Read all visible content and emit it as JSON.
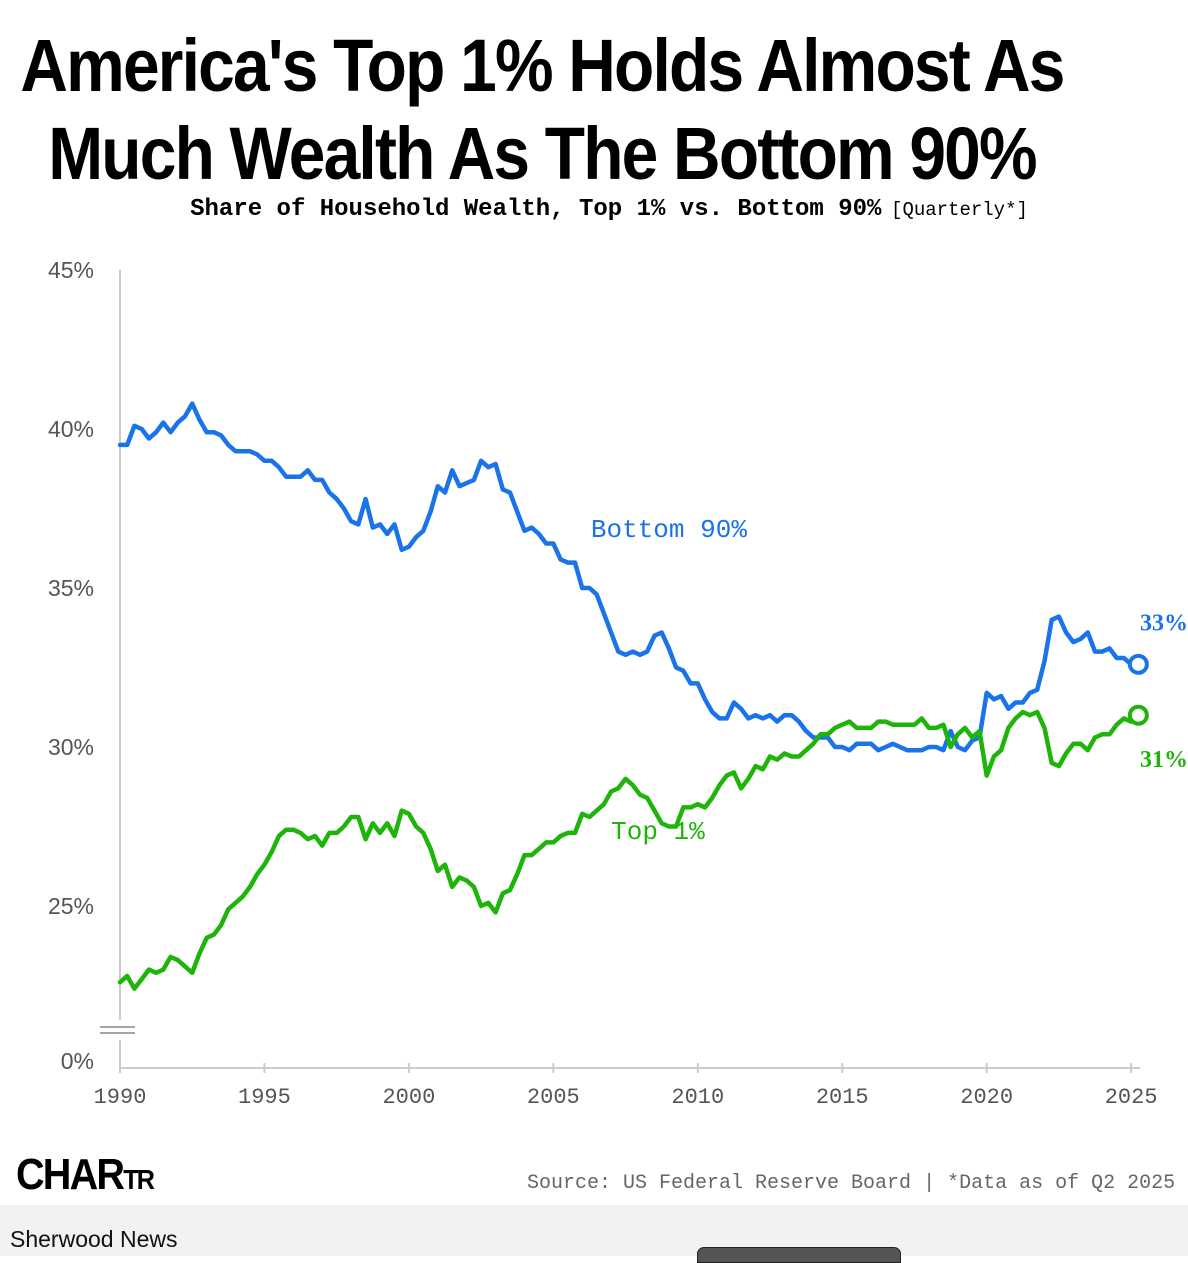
{
  "title": "America's Top 1% Holds Almost As Much Wealth As The Bottom 90%",
  "subtitle": "Share of Household Wealth, Top 1% vs. Bottom 90%",
  "subtitle_note": "[Quarterly*]",
  "brand": {
    "logo_main": "CHAR",
    "logo_small": "TR",
    "publisher": "Sherwood News"
  },
  "source": "Source: US Federal Reserve Board | *Data as of Q2 2025",
  "colors": {
    "bottom90": "#1a73e8",
    "top1": "#1fb40a",
    "axis": "#cccccc",
    "tick_text": "#555555"
  },
  "chart_data": {
    "type": "line",
    "title": "Share of Household Wealth, Top 1% vs. Bottom 90%",
    "xlabel": "",
    "ylabel": "",
    "xlim": [
      1990,
      2025.3
    ],
    "ylim": [
      0,
      45
    ],
    "axis_break": true,
    "y_ticks": [
      0,
      25,
      30,
      35,
      40,
      45
    ],
    "y_tick_labels": [
      "0%",
      "25%",
      "30%",
      "35%",
      "40%",
      "45%"
    ],
    "x_ticks": [
      1990,
      1995,
      2000,
      2005,
      2010,
      2015,
      2020,
      2025
    ],
    "x_tick_labels": [
      "1990",
      "1995",
      "2000",
      "2005",
      "2010",
      "2015",
      "2020",
      "2025"
    ],
    "series": [
      {
        "name": "Bottom 90%",
        "end_label": "33%",
        "x": [
          1990.0,
          1990.25,
          1990.5,
          1990.75,
          1991.0,
          1991.25,
          1991.5,
          1991.75,
          1992.0,
          1992.25,
          1992.5,
          1992.75,
          1993.0,
          1993.25,
          1993.5,
          1993.75,
          1994.0,
          1994.25,
          1994.5,
          1994.75,
          1995.0,
          1995.25,
          1995.5,
          1995.75,
          1996.0,
          1996.25,
          1996.5,
          1996.75,
          1997.0,
          1997.25,
          1997.5,
          1997.75,
          1998.0,
          1998.25,
          1998.5,
          1998.75,
          1999.0,
          1999.25,
          1999.5,
          1999.75,
          2000.0,
          2000.25,
          2000.5,
          2000.75,
          2001.0,
          2001.25,
          2001.5,
          2001.75,
          2002.0,
          2002.25,
          2002.5,
          2002.75,
          2003.0,
          2003.25,
          2003.5,
          2003.75,
          2004.0,
          2004.25,
          2004.5,
          2004.75,
          2005.0,
          2005.25,
          2005.5,
          2005.75,
          2006.0,
          2006.25,
          2006.5,
          2006.75,
          2007.0,
          2007.25,
          2007.5,
          2007.75,
          2008.0,
          2008.25,
          2008.5,
          2008.75,
          2009.0,
          2009.25,
          2009.5,
          2009.75,
          2010.0,
          2010.25,
          2010.5,
          2010.75,
          2011.0,
          2011.25,
          2011.5,
          2011.75,
          2012.0,
          2012.25,
          2012.5,
          2012.75,
          2013.0,
          2013.25,
          2013.5,
          2013.75,
          2014.0,
          2014.25,
          2014.5,
          2014.75,
          2015.0,
          2015.25,
          2015.5,
          2015.75,
          2016.0,
          2016.25,
          2016.5,
          2016.75,
          2017.0,
          2017.25,
          2017.5,
          2017.75,
          2018.0,
          2018.25,
          2018.5,
          2018.75,
          2019.0,
          2019.25,
          2019.5,
          2019.75,
          2020.0,
          2020.25,
          2020.5,
          2020.75,
          2021.0,
          2021.25,
          2021.5,
          2021.75,
          2022.0,
          2022.25,
          2022.5,
          2022.75,
          2023.0,
          2023.25,
          2023.5,
          2023.75,
          2024.0,
          2024.25,
          2024.5,
          2024.75,
          2025.0,
          2025.25
        ],
        "values": [
          39.5,
          39.5,
          40.1,
          40.0,
          39.7,
          39.9,
          40.2,
          39.9,
          40.2,
          40.4,
          40.8,
          40.3,
          39.9,
          39.9,
          39.8,
          39.5,
          39.3,
          39.3,
          39.3,
          39.2,
          39.0,
          39.0,
          38.8,
          38.5,
          38.5,
          38.5,
          38.7,
          38.4,
          38.4,
          38.0,
          37.8,
          37.5,
          37.1,
          37.0,
          37.8,
          36.9,
          37.0,
          36.7,
          37.0,
          36.2,
          36.3,
          36.6,
          36.8,
          37.4,
          38.2,
          38.0,
          38.7,
          38.2,
          38.3,
          38.4,
          39.0,
          38.8,
          38.9,
          38.1,
          38.0,
          37.4,
          36.8,
          36.9,
          36.7,
          36.4,
          36.4,
          35.9,
          35.8,
          35.8,
          35.0,
          35.0,
          34.8,
          34.2,
          33.6,
          33.0,
          32.9,
          33.0,
          32.9,
          33.0,
          33.5,
          33.6,
          33.1,
          32.5,
          32.4,
          32.0,
          32.0,
          31.5,
          31.1,
          30.9,
          30.9,
          31.4,
          31.2,
          30.9,
          31.0,
          30.9,
          31.0,
          30.8,
          31.0,
          31.0,
          30.8,
          30.5,
          30.3,
          30.3,
          30.3,
          30.0,
          30.0,
          29.9,
          30.1,
          30.1,
          30.1,
          29.9,
          30.0,
          30.1,
          30.0,
          29.9,
          29.9,
          29.9,
          30.0,
          30.0,
          29.9,
          30.5,
          30.0,
          29.9,
          30.2,
          30.3,
          31.7,
          31.5,
          31.6,
          31.2,
          31.4,
          31.4,
          31.7,
          31.8,
          32.7,
          34.0,
          34.1,
          33.6,
          33.3,
          33.4,
          33.6,
          33.0,
          33.0,
          33.1,
          32.8,
          32.8,
          32.6,
          32.6
        ]
      },
      {
        "name": "Top 1%",
        "end_label": "31%",
        "x": [
          1990.0,
          1990.25,
          1990.5,
          1990.75,
          1991.0,
          1991.25,
          1991.5,
          1991.75,
          1992.0,
          1992.25,
          1992.5,
          1992.75,
          1993.0,
          1993.25,
          1993.5,
          1993.75,
          1994.0,
          1994.25,
          1994.5,
          1994.75,
          1995.0,
          1995.25,
          1995.5,
          1995.75,
          1996.0,
          1996.25,
          1996.5,
          1996.75,
          1997.0,
          1997.25,
          1997.5,
          1997.75,
          1998.0,
          1998.25,
          1998.5,
          1998.75,
          1999.0,
          1999.25,
          1999.5,
          1999.75,
          2000.0,
          2000.25,
          2000.5,
          2000.75,
          2001.0,
          2001.25,
          2001.5,
          2001.75,
          2002.0,
          2002.25,
          2002.5,
          2002.75,
          2003.0,
          2003.25,
          2003.5,
          2003.75,
          2004.0,
          2004.25,
          2004.5,
          2004.75,
          2005.0,
          2005.25,
          2005.5,
          2005.75,
          2006.0,
          2006.25,
          2006.5,
          2006.75,
          2007.0,
          2007.25,
          2007.5,
          2007.75,
          2008.0,
          2008.25,
          2008.5,
          2008.75,
          2009.0,
          2009.25,
          2009.5,
          2009.75,
          2010.0,
          2010.25,
          2010.5,
          2010.75,
          2011.0,
          2011.25,
          2011.5,
          2011.75,
          2012.0,
          2012.25,
          2012.5,
          2012.75,
          2013.0,
          2013.25,
          2013.5,
          2013.75,
          2014.0,
          2014.25,
          2014.5,
          2014.75,
          2015.0,
          2015.25,
          2015.5,
          2015.75,
          2016.0,
          2016.25,
          2016.5,
          2016.75,
          2017.0,
          2017.25,
          2017.5,
          2017.75,
          2018.0,
          2018.25,
          2018.5,
          2018.75,
          2019.0,
          2019.25,
          2019.5,
          2019.75,
          2020.0,
          2020.25,
          2020.5,
          2020.75,
          2021.0,
          2021.25,
          2021.5,
          2021.75,
          2022.0,
          2022.25,
          2022.5,
          2022.75,
          2023.0,
          2023.25,
          2023.5,
          2023.75,
          2024.0,
          2024.25,
          2024.5,
          2024.75,
          2025.0,
          2025.25
        ],
        "values": [
          22.6,
          22.8,
          22.4,
          22.7,
          23.0,
          22.9,
          23.0,
          23.4,
          23.3,
          23.1,
          22.9,
          23.5,
          24.0,
          24.1,
          24.4,
          24.9,
          25.1,
          25.3,
          25.6,
          26.0,
          26.3,
          26.7,
          27.2,
          27.4,
          27.4,
          27.3,
          27.1,
          27.2,
          26.9,
          27.3,
          27.3,
          27.5,
          27.8,
          27.8,
          27.1,
          27.6,
          27.3,
          27.6,
          27.2,
          28.0,
          27.9,
          27.5,
          27.3,
          26.8,
          26.1,
          26.3,
          25.6,
          25.9,
          25.8,
          25.6,
          25.0,
          25.1,
          24.8,
          25.4,
          25.5,
          26.0,
          26.6,
          26.6,
          26.8,
          27.0,
          27.0,
          27.2,
          27.3,
          27.3,
          27.9,
          27.8,
          28.0,
          28.2,
          28.6,
          28.7,
          29.0,
          28.8,
          28.5,
          28.4,
          28.0,
          27.6,
          27.5,
          27.5,
          28.1,
          28.1,
          28.2,
          28.1,
          28.4,
          28.8,
          29.1,
          29.2,
          28.7,
          29.0,
          29.4,
          29.3,
          29.7,
          29.6,
          29.8,
          29.7,
          29.7,
          29.9,
          30.1,
          30.4,
          30.4,
          30.6,
          30.7,
          30.8,
          30.6,
          30.6,
          30.6,
          30.8,
          30.8,
          30.7,
          30.7,
          30.7,
          30.7,
          30.9,
          30.6,
          30.6,
          30.7,
          30.0,
          30.4,
          30.6,
          30.3,
          30.5,
          29.1,
          29.7,
          29.9,
          30.6,
          30.9,
          31.1,
          31.0,
          31.1,
          30.6,
          29.5,
          29.4,
          29.8,
          30.1,
          30.1,
          29.9,
          30.3,
          30.4,
          30.4,
          30.7,
          30.9,
          30.8,
          31.0
        ]
      }
    ],
    "annotations": [
      {
        "text": "Bottom 90%",
        "x": 2006.3,
        "y": 36.6,
        "series": "Bottom 90%"
      },
      {
        "text": "Top 1%",
        "x": 2007.0,
        "y": 27.1,
        "series": "Top 1%"
      }
    ]
  }
}
